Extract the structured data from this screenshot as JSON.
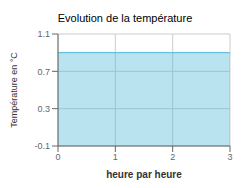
{
  "chart_data": {
    "type": "area",
    "title": "Evolution de la température",
    "xlabel": "heure par heure",
    "ylabel": "Température en °C",
    "x": [
      0,
      3
    ],
    "values": [
      0.9,
      0.9
    ],
    "color": "#4db8d8",
    "xlim": [
      0,
      3
    ],
    "ylim": [
      -0.1,
      1.1
    ],
    "xticks": [
      0,
      1,
      2,
      3
    ],
    "yticks": [
      -0.1,
      0.3,
      0.7,
      1.1
    ],
    "grid": true
  }
}
